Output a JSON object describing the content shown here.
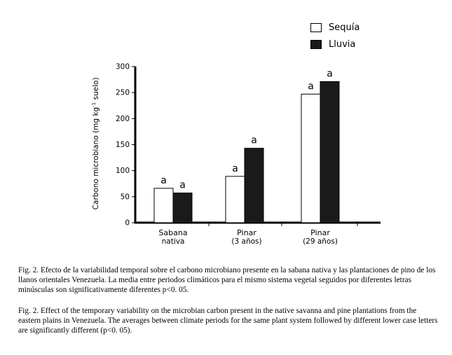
{
  "chart_data": {
    "type": "bar",
    "ylabel": "Carbono microbiano (mg kg",
    "ylabel_sup": "-1",
    "ylabel_end": " suelo)",
    "ylim": [
      0,
      300
    ],
    "yticks": [
      "0",
      "50",
      "100",
      "150",
      "200",
      "250",
      "300"
    ],
    "categories": [
      {
        "line1": "Sabana",
        "line2": "nativa"
      },
      {
        "line1": "Pinar",
        "line2": "(3 años)"
      },
      {
        "line1": "Pinar",
        "line2": "(29 años)"
      }
    ],
    "series": [
      {
        "name": "Sequía",
        "color": "#ffffff",
        "values": [
          66,
          89,
          247
        ],
        "labels": [
          "a",
          "a",
          "a"
        ]
      },
      {
        "name": "Lluvia",
        "color": "#1a1a1a",
        "values": [
          57,
          143,
          271
        ],
        "labels": [
          "a",
          "a",
          "a"
        ]
      }
    ],
    "legend_position": "top-right",
    "grid": false
  },
  "captions": {
    "es": "Fig. 2. Efecto de la variabilidad temporal sobre el carbono microbiano presente en la sabana nativa y las plantaciones de pino de los llanos orientales Venezuela. La media entre periodos climáticos para el mismo sistema vegetal seguidos por diferentes letras minúsculas son significativamente diferentes p<0. 05.",
    "en": "Fig. 2.  Effect of the temporary variability on the microbian carbon present in the native savanna and pine plantations from the eastern plains in Venezuela. The averages between climate periods for the same plant system followed by different lower case letters are significantly different (p<0. 05)."
  }
}
